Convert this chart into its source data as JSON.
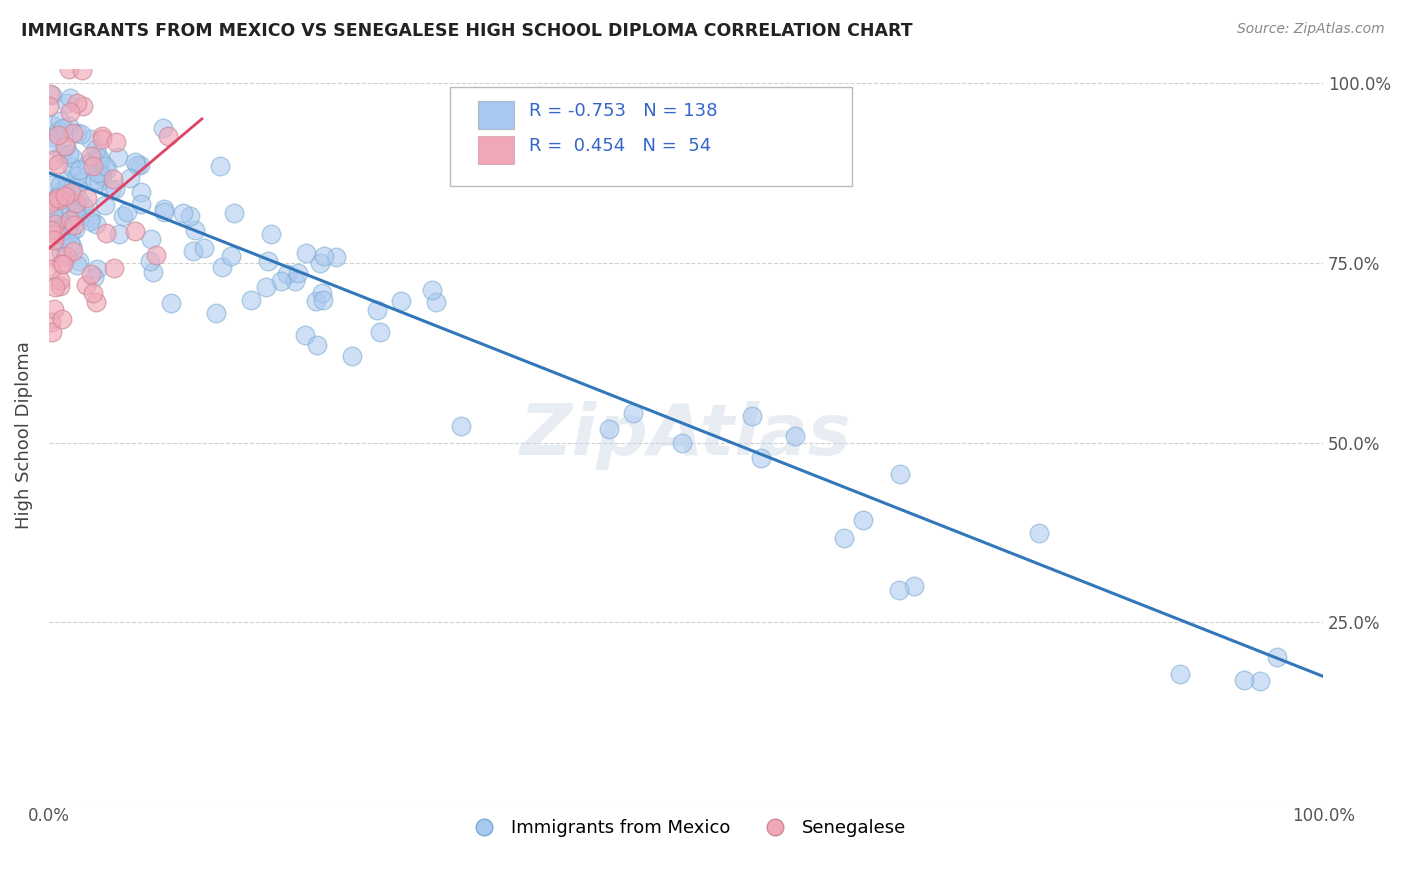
{
  "title": "IMMIGRANTS FROM MEXICO VS SENEGALESE HIGH SCHOOL DIPLOMA CORRELATION CHART",
  "source": "Source: ZipAtlas.com",
  "ylabel": "High School Diploma",
  "blue_R": -0.753,
  "blue_N": 138,
  "pink_R": 0.454,
  "pink_N": 54,
  "blue_color": "#a8c8f0",
  "blue_edge_color": "#7aaad0",
  "pink_color": "#f0a8b8",
  "pink_edge_color": "#d08898",
  "blue_line_color": "#3377bb",
  "pink_line_color": "#dd4466",
  "legend_blue_label": "Immigrants from Mexico",
  "legend_pink_label": "Senegalese",
  "watermark": "ZipAtlas",
  "background_color": "#ffffff",
  "title_color": "#222222",
  "axis_label_color": "#444444",
  "tick_color": "#555555",
  "grid_color": "#cccccc",
  "legend_text_color": "#3366cc",
  "source_color": "#888888"
}
